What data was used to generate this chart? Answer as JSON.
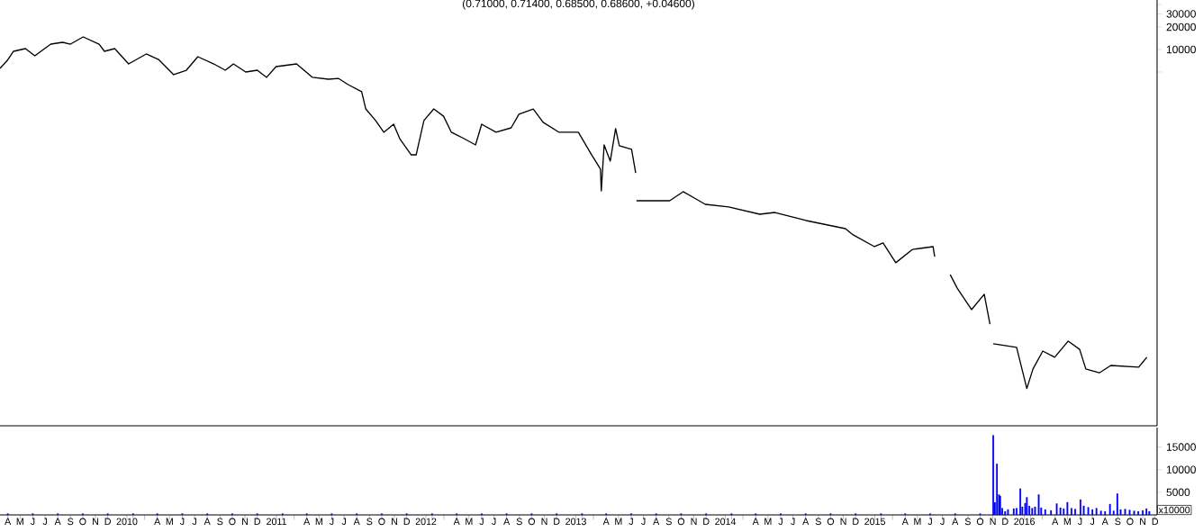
{
  "chart_data": [
    {
      "type": "line",
      "title": "(0.71000, 0.71400, 0.68500, 0.68600, +0.04600)",
      "color": "#000000",
      "log": true,
      "tick_labels": "y",
      "xlim": [
        "2009-03-27",
        "2016-12-20"
      ],
      "ylim": [
        0.092,
        46000
      ],
      "yticks": [
        {
          "value": 5000,
          "label": null
        },
        10000,
        20000,
        30000,
        {
          "value": 40000,
          "label": null
        }
      ],
      "x": [
        "2009-03-27",
        "2009-04-14",
        "2009-04-29",
        "2009-05-28",
        "2009-06-20",
        "2009-07-29",
        "2009-08-27",
        "2009-09-15",
        "2009-10-16",
        "2009-11-24",
        "2009-12-07",
        "2010-01-01",
        "2010-02-04",
        "2010-03-19",
        "2010-04-18",
        "2010-05-25",
        "2010-06-25",
        "2010-07-23",
        "2010-08-31",
        "2010-09-28",
        "2010-10-18",
        "2010-11-17",
        "2010-12-15",
        "2011-01-07",
        "2011-01-30",
        "2011-03-21",
        "2011-04-29",
        "2011-06-07",
        "2011-07-01",
        "2011-07-25",
        "2011-08-27",
        "2011-09-06",
        "2011-09-30",
        "2011-10-20",
        "2011-11-13",
        "2011-11-28",
        "2011-12-26",
        "2012-01-07",
        "2012-01-26",
        "2012-02-19",
        "2012-03-14",
        "2012-04-02",
        "2012-05-03",
        "2012-05-31",
        "2012-06-15",
        "2012-07-20",
        "2012-08-26",
        "2012-09-14",
        "2012-10-19",
        "2012-11-12",
        "2012-12-21",
        "2013-02-06",
        "2013-03-08",
        "2013-04-01",
        "2013-04-03",
        "2013-04-10",
        "2013-04-25",
        "2013-05-08",
        "2013-05-17",
        "2013-06-16",
        "2013-06-26",
        "2013-06-27",
        "2013-06-28",
        "2013-09-17",
        "2013-10-20",
        "2013-12-13",
        "2014-02-08",
        "2014-04-25",
        "2014-06-01",
        "2014-08-16",
        "2014-11-20",
        "2014-12-09",
        "2015-01-30",
        "2015-02-20",
        "2015-03-23",
        "2015-05-03",
        "2015-06-22",
        "2015-06-26",
        "2015-07-15",
        "2015-08-03",
        "2015-08-20",
        "2015-09-24",
        "2015-10-25",
        "2015-11-08",
        "2015-11-12",
        "2015-11-16",
        "2016-01-12",
        "2016-02-06",
        "2016-02-21",
        "2016-03-16",
        "2016-04-14",
        "2016-05-17",
        "2016-06-14",
        "2016-06-29",
        "2016-08-01",
        "2016-08-29",
        "2016-11-05",
        "2016-11-25"
      ],
      "values": [
        5580,
        7160,
        9460,
        10280,
        8240,
        11800,
        12480,
        11800,
        14750,
        11800,
        9460,
        10280,
        6410,
        8710,
        7360,
        4600,
        5280,
        8010,
        6410,
        5280,
        6410,
        5000,
        5280,
        4240,
        5900,
        6410,
        4240,
        4000,
        4110,
        3390,
        2720,
        1600,
        1120,
        780,
        1000,
        641,
        389,
        389,
        1120,
        1600,
        1280,
        780,
        641,
        528,
        1000,
        780,
        895,
        1360,
        1600,
        1060,
        780,
        780,
        411,
        250,
        128,
        528,
        321,
        871,
        514,
        460,
        223,
        null,
        94.6,
        94.6,
        125,
        84.7,
        78.0,
        62.4,
        65.9,
        51.4,
        40.0,
        33.0,
        23.0,
        25.7,
        14.0,
        21.1,
        23.0,
        16.9,
        null,
        9.7,
        6.4,
        3.3,
        5.3,
        2.1,
        null,
        1.15,
        1.03,
        0.29,
        0.53,
        0.92,
        0.76,
        1.25,
        0.97,
        0.53,
        0.47,
        0.59,
        0.56,
        0.76
      ]
    },
    {
      "type": "bar",
      "color": "#0000ff",
      "annotations": [
        "x10000"
      ],
      "xlim": [
        "2009-03-27",
        "2016-12-20"
      ],
      "ylim": [
        0,
        19300
      ],
      "yticks": [
        5000,
        10000,
        15000
      ],
      "xticks": [
        {
          "value": "2009-04-15",
          "label": "A"
        },
        {
          "value": "2009-05-15",
          "label": "M"
        },
        {
          "value": "2009-06-15",
          "label": "J"
        },
        {
          "value": "2009-07-15",
          "label": "J"
        },
        {
          "value": "2009-08-15",
          "label": "A"
        },
        {
          "value": "2009-09-15",
          "label": "S"
        },
        {
          "value": "2009-10-15",
          "label": "O"
        },
        {
          "value": "2009-11-15",
          "label": "N"
        },
        {
          "value": "2009-12-15",
          "label": "D"
        },
        {
          "value": "2010-01-31",
          "label": "2010"
        },
        {
          "value": "2010-02-15",
          "label": null
        },
        {
          "value": "2010-03-15",
          "label": null
        },
        {
          "value": "2010-04-15",
          "label": "A"
        },
        {
          "value": "2010-05-15",
          "label": "M"
        },
        {
          "value": "2010-06-15",
          "label": "J"
        },
        {
          "value": "2010-07-15",
          "label": "J"
        },
        {
          "value": "2010-08-15",
          "label": "A"
        },
        {
          "value": "2010-09-15",
          "label": "S"
        },
        {
          "value": "2010-10-15",
          "label": "O"
        },
        {
          "value": "2010-11-15",
          "label": "N"
        },
        {
          "value": "2010-12-15",
          "label": "D"
        },
        {
          "value": "2011-01-31",
          "label": "2011"
        },
        {
          "value": "2011-02-15",
          "label": null
        },
        {
          "value": "2011-03-15",
          "label": null
        },
        {
          "value": "2011-04-15",
          "label": "A"
        },
        {
          "value": "2011-05-15",
          "label": "M"
        },
        {
          "value": "2011-06-15",
          "label": "J"
        },
        {
          "value": "2011-07-15",
          "label": "J"
        },
        {
          "value": "2011-08-15",
          "label": "A"
        },
        {
          "value": "2011-09-15",
          "label": "S"
        },
        {
          "value": "2011-10-15",
          "label": "O"
        },
        {
          "value": "2011-11-15",
          "label": "N"
        },
        {
          "value": "2011-12-15",
          "label": "D"
        },
        {
          "value": "2012-01-31",
          "label": "2012"
        },
        {
          "value": "2012-02-15",
          "label": null
        },
        {
          "value": "2012-03-15",
          "label": null
        },
        {
          "value": "2012-04-15",
          "label": "A"
        },
        {
          "value": "2012-05-15",
          "label": "M"
        },
        {
          "value": "2012-06-15",
          "label": "J"
        },
        {
          "value": "2012-07-15",
          "label": "J"
        },
        {
          "value": "2012-08-15",
          "label": "A"
        },
        {
          "value": "2012-09-15",
          "label": "S"
        },
        {
          "value": "2012-10-15",
          "label": "O"
        },
        {
          "value": "2012-11-15",
          "label": "N"
        },
        {
          "value": "2012-12-15",
          "label": "D"
        },
        {
          "value": "2013-01-31",
          "label": "2013"
        },
        {
          "value": "2013-02-15",
          "label": null
        },
        {
          "value": "2013-03-15",
          "label": null
        },
        {
          "value": "2013-04-15",
          "label": "A"
        },
        {
          "value": "2013-05-15",
          "label": "M"
        },
        {
          "value": "2013-06-15",
          "label": "J"
        },
        {
          "value": "2013-07-15",
          "label": "J"
        },
        {
          "value": "2013-08-15",
          "label": "A"
        },
        {
          "value": "2013-09-15",
          "label": "S"
        },
        {
          "value": "2013-10-15",
          "label": "O"
        },
        {
          "value": "2013-11-15",
          "label": "N"
        },
        {
          "value": "2013-12-15",
          "label": "D"
        },
        {
          "value": "2014-01-31",
          "label": "2014"
        },
        {
          "value": "2014-02-15",
          "label": null
        },
        {
          "value": "2014-03-15",
          "label": null
        },
        {
          "value": "2014-04-15",
          "label": "A"
        },
        {
          "value": "2014-05-15",
          "label": "M"
        },
        {
          "value": "2014-06-15",
          "label": "J"
        },
        {
          "value": "2014-07-15",
          "label": "J"
        },
        {
          "value": "2014-08-15",
          "label": "A"
        },
        {
          "value": "2014-09-15",
          "label": "S"
        },
        {
          "value": "2014-10-15",
          "label": "O"
        },
        {
          "value": "2014-11-15",
          "label": "N"
        },
        {
          "value": "2014-12-15",
          "label": "D"
        },
        {
          "value": "2015-01-31",
          "label": "2015"
        },
        {
          "value": "2015-02-15",
          "label": null
        },
        {
          "value": "2015-03-15",
          "label": null
        },
        {
          "value": "2015-04-15",
          "label": "A"
        },
        {
          "value": "2015-05-15",
          "label": "M"
        },
        {
          "value": "2015-06-15",
          "label": "J"
        },
        {
          "value": "2015-07-15",
          "label": "J"
        },
        {
          "value": "2015-08-15",
          "label": "A"
        },
        {
          "value": "2015-09-15",
          "label": "S"
        },
        {
          "value": "2015-10-15",
          "label": "O"
        },
        {
          "value": "2015-11-15",
          "label": "N"
        },
        {
          "value": "2015-12-15",
          "label": "D"
        },
        {
          "value": "2016-01-31",
          "label": "2016"
        },
        {
          "value": "2016-02-15",
          "label": null
        },
        {
          "value": "2016-03-15",
          "label": null
        },
        {
          "value": "2016-04-15",
          "label": "A"
        },
        {
          "value": "2016-05-15",
          "label": "M"
        },
        {
          "value": "2016-06-15",
          "label": "J"
        },
        {
          "value": "2016-07-15",
          "label": "J"
        },
        {
          "value": "2016-08-15",
          "label": "A"
        },
        {
          "value": "2016-09-15",
          "label": "S"
        },
        {
          "value": "2016-10-15",
          "label": "O"
        },
        {
          "value": "2016-11-15",
          "label": "N"
        },
        {
          "value": "2016-12-15",
          "label": "D"
        }
      ],
      "x": [
        "2009-04-15",
        "2009-06-15",
        "2009-08-15",
        "2009-10-15",
        "2009-12-15",
        "2010-02-15",
        "2010-04-15",
        "2010-06-15",
        "2010-08-15",
        "2010-10-15",
        "2010-12-15",
        "2011-02-15",
        "2011-04-15",
        "2011-06-15",
        "2011-08-15",
        "2011-10-15",
        "2011-12-15",
        "2012-02-15",
        "2012-04-15",
        "2012-06-15",
        "2012-08-15",
        "2012-10-15",
        "2012-12-15",
        "2013-02-15",
        "2013-04-15",
        "2013-06-15",
        "2013-08-15",
        "2013-10-15",
        "2013-12-15",
        "2014-02-15",
        "2014-04-15",
        "2014-06-15",
        "2014-08-15",
        "2014-10-15",
        "2014-12-15",
        "2015-02-15",
        "2015-04-15",
        "2015-06-15",
        "2015-08-15",
        "2015-10-15",
        "2015-11-16",
        "2015-11-20",
        "2015-11-25",
        "2015-11-30",
        "2015-12-03",
        "2015-12-08",
        "2015-12-15",
        "2015-12-22",
        "2016-01-05",
        "2016-01-12",
        "2016-01-21",
        "2016-01-26",
        "2016-02-02",
        "2016-02-06",
        "2016-02-12",
        "2016-02-19",
        "2016-02-26",
        "2016-03-06",
        "2016-03-12",
        "2016-03-22",
        "2016-04-05",
        "2016-04-19",
        "2016-04-28",
        "2016-05-06",
        "2016-05-15",
        "2016-05-25",
        "2016-06-03",
        "2016-06-16",
        "2016-06-24",
        "2016-07-05",
        "2016-07-15",
        "2016-07-25",
        "2016-08-05",
        "2016-08-15",
        "2016-08-27",
        "2016-09-05",
        "2016-09-14",
        "2016-09-22",
        "2016-10-03",
        "2016-10-14",
        "2016-10-25",
        "2016-11-04",
        "2016-11-15",
        "2016-11-24",
        "2016-12-01"
      ],
      "values": [
        300,
        300,
        300,
        300,
        300,
        300,
        300,
        300,
        300,
        300,
        300,
        300,
        300,
        300,
        300,
        300,
        300,
        300,
        300,
        300,
        300,
        300,
        300,
        300,
        300,
        300,
        300,
        300,
        300,
        300,
        300,
        300,
        300,
        300,
        300,
        300,
        300,
        300,
        300,
        300,
        17600,
        2800,
        11300,
        4500,
        4200,
        1500,
        800,
        1200,
        1400,
        1500,
        5800,
        1800,
        2600,
        3900,
        2000,
        1500,
        1800,
        4500,
        1600,
        1200,
        1000,
        2500,
        1600,
        1400,
        2800,
        1500,
        1300,
        3400,
        2000,
        1700,
        1200,
        1500,
        900,
        800,
        2400,
        900,
        4700,
        1200,
        1300,
        1100,
        900,
        800,
        1000,
        1400,
        800
      ]
    }
  ]
}
